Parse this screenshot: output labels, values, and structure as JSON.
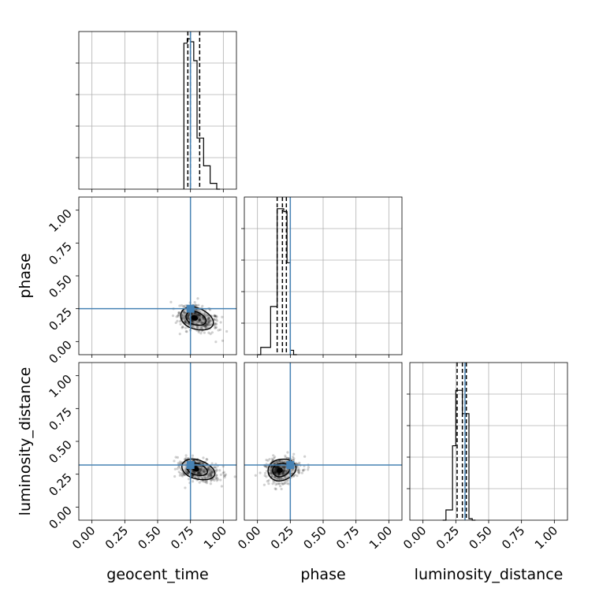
{
  "chart_data": {
    "type": "corner",
    "parameters": [
      "geocent_time",
      "phase",
      "luminosity_distance"
    ],
    "axis_range": [
      -0.1,
      1.1
    ],
    "ticks": [
      0.0,
      0.25,
      0.5,
      0.75,
      1.0
    ],
    "tick_labels": [
      "0.00",
      "0.25",
      "0.50",
      "0.75",
      "1.00"
    ],
    "grid": true,
    "truth_color": "#4682b4",
    "truths": {
      "geocent_time": 0.75,
      "phase": 0.25,
      "luminosity_distance": 0.32
    },
    "histograms": {
      "geocent_time": {
        "edges": [
          0.7,
          0.725,
          0.75,
          0.775,
          0.8,
          0.825,
          0.85,
          0.875,
          0.9,
          0.925,
          0.95,
          0.975
        ],
        "heights": [
          1.0,
          1.03,
          1.01,
          0.88,
          0.35,
          0.35,
          0.16,
          0.16,
          0.04,
          0.04,
          0.0
        ],
        "quantiles": [
          0.73,
          0.75,
          0.82
        ],
        "ymax": 1.08
      },
      "phase": {
        "edges": [
          0.0,
          0.025,
          0.05,
          0.075,
          0.1,
          0.125,
          0.15,
          0.175,
          0.2,
          0.225,
          0.25,
          0.275,
          0.3
        ],
        "heights": [
          0.0,
          0.05,
          0.05,
          0.05,
          0.33,
          0.33,
          1.0,
          1.0,
          0.98,
          0.63,
          0.03,
          0.0
        ],
        "quantiles": [
          0.15,
          0.19,
          0.22
        ],
        "ymax": 1.08
      },
      "luminosity_distance": {
        "edges": [
          0.15,
          0.175,
          0.2,
          0.225,
          0.25,
          0.275,
          0.3,
          0.325,
          0.35,
          0.375,
          0.4
        ],
        "heights": [
          0.0,
          0.07,
          0.07,
          0.51,
          0.89,
          0.89,
          0.73,
          0.73,
          0.01,
          0.0
        ],
        "quantiles": [
          0.26,
          0.3,
          0.33
        ],
        "ymax": 1.08
      }
    },
    "joint": [
      {
        "x": "geocent_time",
        "y": "phase",
        "center": [
          0.78,
          0.18
        ],
        "spread": [
          0.06,
          0.045
        ],
        "tilt": -0.35
      },
      {
        "x": "geocent_time",
        "y": "luminosity_distance",
        "center": [
          0.79,
          0.29
        ],
        "spread": [
          0.06,
          0.04
        ],
        "tilt": -0.3
      },
      {
        "x": "phase",
        "y": "luminosity_distance",
        "center": [
          0.17,
          0.28
        ],
        "spread": [
          0.05,
          0.045
        ],
        "tilt": 0.25
      }
    ]
  }
}
